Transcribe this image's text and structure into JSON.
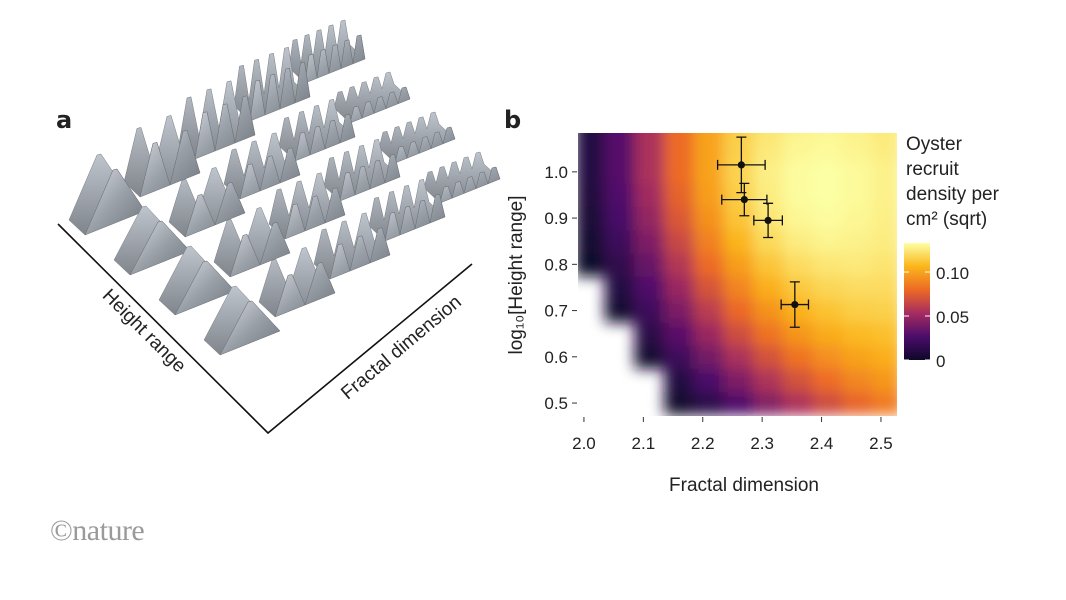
{
  "panel_a": {
    "label": "a",
    "x_label": "Fractal dimension",
    "y_label": "Height range"
  },
  "chart_data": {
    "type": "heatmap",
    "label": "b",
    "xlabel": "Fractal dimension",
    "ylabel": "log₁₀[Height range]",
    "colorbar_title": [
      "Oyster",
      "recruit",
      "density per",
      "cm² (sqrt)"
    ],
    "xlim": [
      1.99,
      2.527
    ],
    "ylim": [
      0.472,
      1.084
    ],
    "xticks": [
      {
        "value": 2.0,
        "label": "2.0"
      },
      2.1,
      2.2,
      2.3,
      2.4,
      2.5
    ],
    "yticks": [
      0.5,
      0.6,
      0.7,
      0.8,
      0.9,
      {
        "value": 1.0,
        "label": "1.0"
      }
    ],
    "clim": [
      0,
      0.133
    ],
    "cticks": [
      0,
      0.05,
      {
        "value": 0.1,
        "label": "0.10"
      }
    ],
    "colorscale": [
      "#0d0829",
      "#4b0c6b",
      "#a52c60",
      "#ed6925",
      "#fbb61a",
      "#fcffa4"
    ],
    "x": [
      2.01,
      2.06,
      2.11,
      2.16,
      2.21,
      2.26,
      2.31,
      2.36,
      2.41,
      2.46,
      2.51
    ],
    "y": [
      0.5,
      0.55,
      0.6,
      0.65,
      0.7,
      0.75,
      0.8,
      0.85,
      0.9,
      0.95,
      1.0,
      1.05,
      1.1
    ],
    "z": [
      [
        null,
        null,
        null,
        0.002,
        0.013,
        0.028,
        0.043,
        0.056,
        0.068,
        0.078,
        0.086
      ],
      [
        null,
        null,
        null,
        0.01,
        0.026,
        0.042,
        0.057,
        0.07,
        0.081,
        0.09,
        0.096
      ],
      [
        null,
        null,
        0.004,
        0.02,
        0.038,
        0.055,
        0.07,
        0.083,
        0.093,
        0.1,
        0.104
      ],
      [
        null,
        null,
        0.012,
        0.031,
        0.05,
        0.068,
        0.083,
        0.095,
        0.103,
        0.108,
        0.11
      ],
      [
        null,
        0.004,
        0.02,
        0.041,
        0.061,
        0.079,
        0.094,
        0.105,
        0.111,
        0.115,
        0.116
      ],
      [
        null,
        0.01,
        0.028,
        0.05,
        0.071,
        0.089,
        0.104,
        0.113,
        0.118,
        0.12,
        0.12
      ],
      [
        0.001,
        0.015,
        0.035,
        0.058,
        0.08,
        0.098,
        0.112,
        0.12,
        0.124,
        0.125,
        0.123
      ],
      [
        0.004,
        0.02,
        0.042,
        0.066,
        0.088,
        0.106,
        0.119,
        0.126,
        0.129,
        0.128,
        0.126
      ],
      [
        0.006,
        0.025,
        0.048,
        0.073,
        0.094,
        0.112,
        0.124,
        0.13,
        0.132,
        0.13,
        0.127
      ],
      [
        0.008,
        0.028,
        0.052,
        0.077,
        0.098,
        0.115,
        0.126,
        0.132,
        0.133,
        0.131,
        0.128
      ],
      [
        0.01,
        0.03,
        0.055,
        0.08,
        0.1,
        0.117,
        0.127,
        0.132,
        0.133,
        0.131,
        0.128
      ],
      [
        0.01,
        0.03,
        0.055,
        0.08,
        0.1,
        0.116,
        0.125,
        0.13,
        0.131,
        0.129,
        0.126
      ],
      [
        0.01,
        0.03,
        0.055,
        0.08,
        0.1,
        0.115,
        0.123,
        0.128,
        0.13,
        0.128,
        0.125
      ]
    ],
    "points": {
      "color": "#111111",
      "x": [
        2.265,
        2.27,
        2.31,
        2.355
      ],
      "y": [
        1.015,
        0.94,
        0.895,
        0.713
      ],
      "xerr": [
        0.04,
        0.038,
        0.024,
        0.023
      ],
      "yerr": [
        0.06,
        0.035,
        0.037,
        0.049
      ]
    }
  },
  "footer": "©nature"
}
